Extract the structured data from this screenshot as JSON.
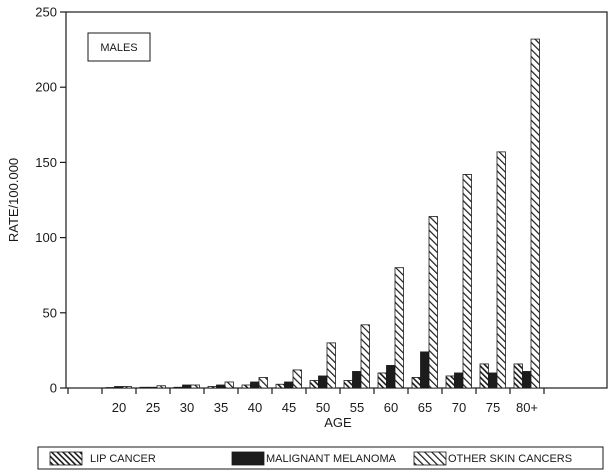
{
  "chart_data": {
    "type": "bar",
    "panel_label": "MALES",
    "xlabel": "AGE",
    "ylabel": "RATE/100.000",
    "ylim": [
      0,
      250
    ],
    "yticks": [
      0,
      50,
      100,
      150,
      200,
      250
    ],
    "categories": [
      "",
      "20",
      "25",
      "30",
      "35",
      "40",
      "45",
      "50",
      "55",
      "60",
      "65",
      "70",
      "75",
      "80+"
    ],
    "series": [
      {
        "name": "LIP CANCER",
        "values": [
          0,
          0.3,
          0.5,
          0.5,
          1,
          2,
          2.5,
          5,
          5,
          10,
          7,
          8,
          16,
          16
        ]
      },
      {
        "name": "MALIGNANT MELANOMA",
        "values": [
          0,
          1,
          0.5,
          2,
          2,
          4,
          4,
          8,
          11,
          15,
          24,
          10,
          10,
          11
        ]
      },
      {
        "name": "OTHER SKIN CANCERS",
        "values": [
          0,
          1,
          1.5,
          2,
          4,
          7,
          12,
          30,
          42,
          80,
          114,
          142,
          157,
          232
        ]
      }
    ],
    "legend_position": "bottom",
    "grid": false
  }
}
